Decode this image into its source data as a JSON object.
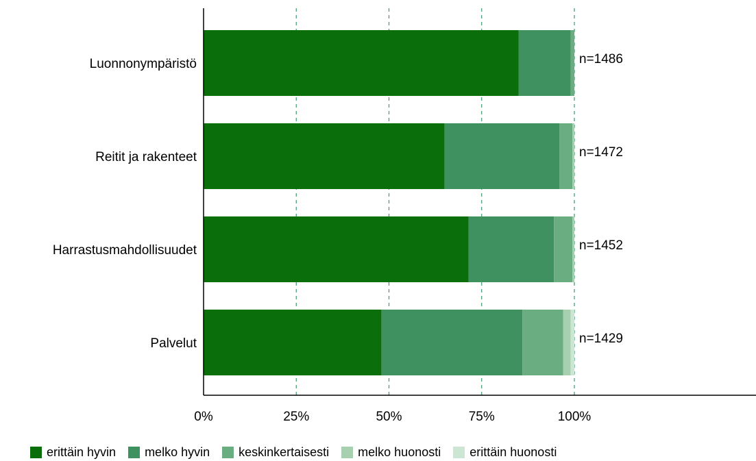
{
  "chart_data": {
    "type": "bar",
    "orientation": "horizontal",
    "stacked": true,
    "percent": true,
    "categories": [
      "Luonnonympäristö",
      "Reitit ja rakenteet",
      "Harrastusmahdollisuudet",
      "Palvelut"
    ],
    "annotations": [
      "n=1486",
      "n=1472",
      "n=1452",
      "n=1429"
    ],
    "series": [
      {
        "name": "erittäin hyvin",
        "color": "#0a6e0a",
        "values": [
          85,
          65,
          71.5,
          48
        ]
      },
      {
        "name": "melko hyvin",
        "color": "#3f9160",
        "values": [
          14,
          31,
          23,
          38
        ]
      },
      {
        "name": "keskinkertaisesti",
        "color": "#6aad80",
        "values": [
          1,
          3.5,
          5,
          11
        ]
      },
      {
        "name": "melko huonosti",
        "color": "#a6d0b0",
        "values": [
          0,
          0.5,
          0.5,
          2
        ]
      },
      {
        "name": "erittäin huonosti",
        "color": "#cde6d4",
        "values": [
          0,
          0,
          0,
          1
        ]
      }
    ],
    "xticks": [
      "0%",
      "25%",
      "50%",
      "75%",
      "100%"
    ],
    "xlim": [
      0,
      100
    ],
    "grid": "vertical-dashed",
    "legend_position": "bottom"
  }
}
